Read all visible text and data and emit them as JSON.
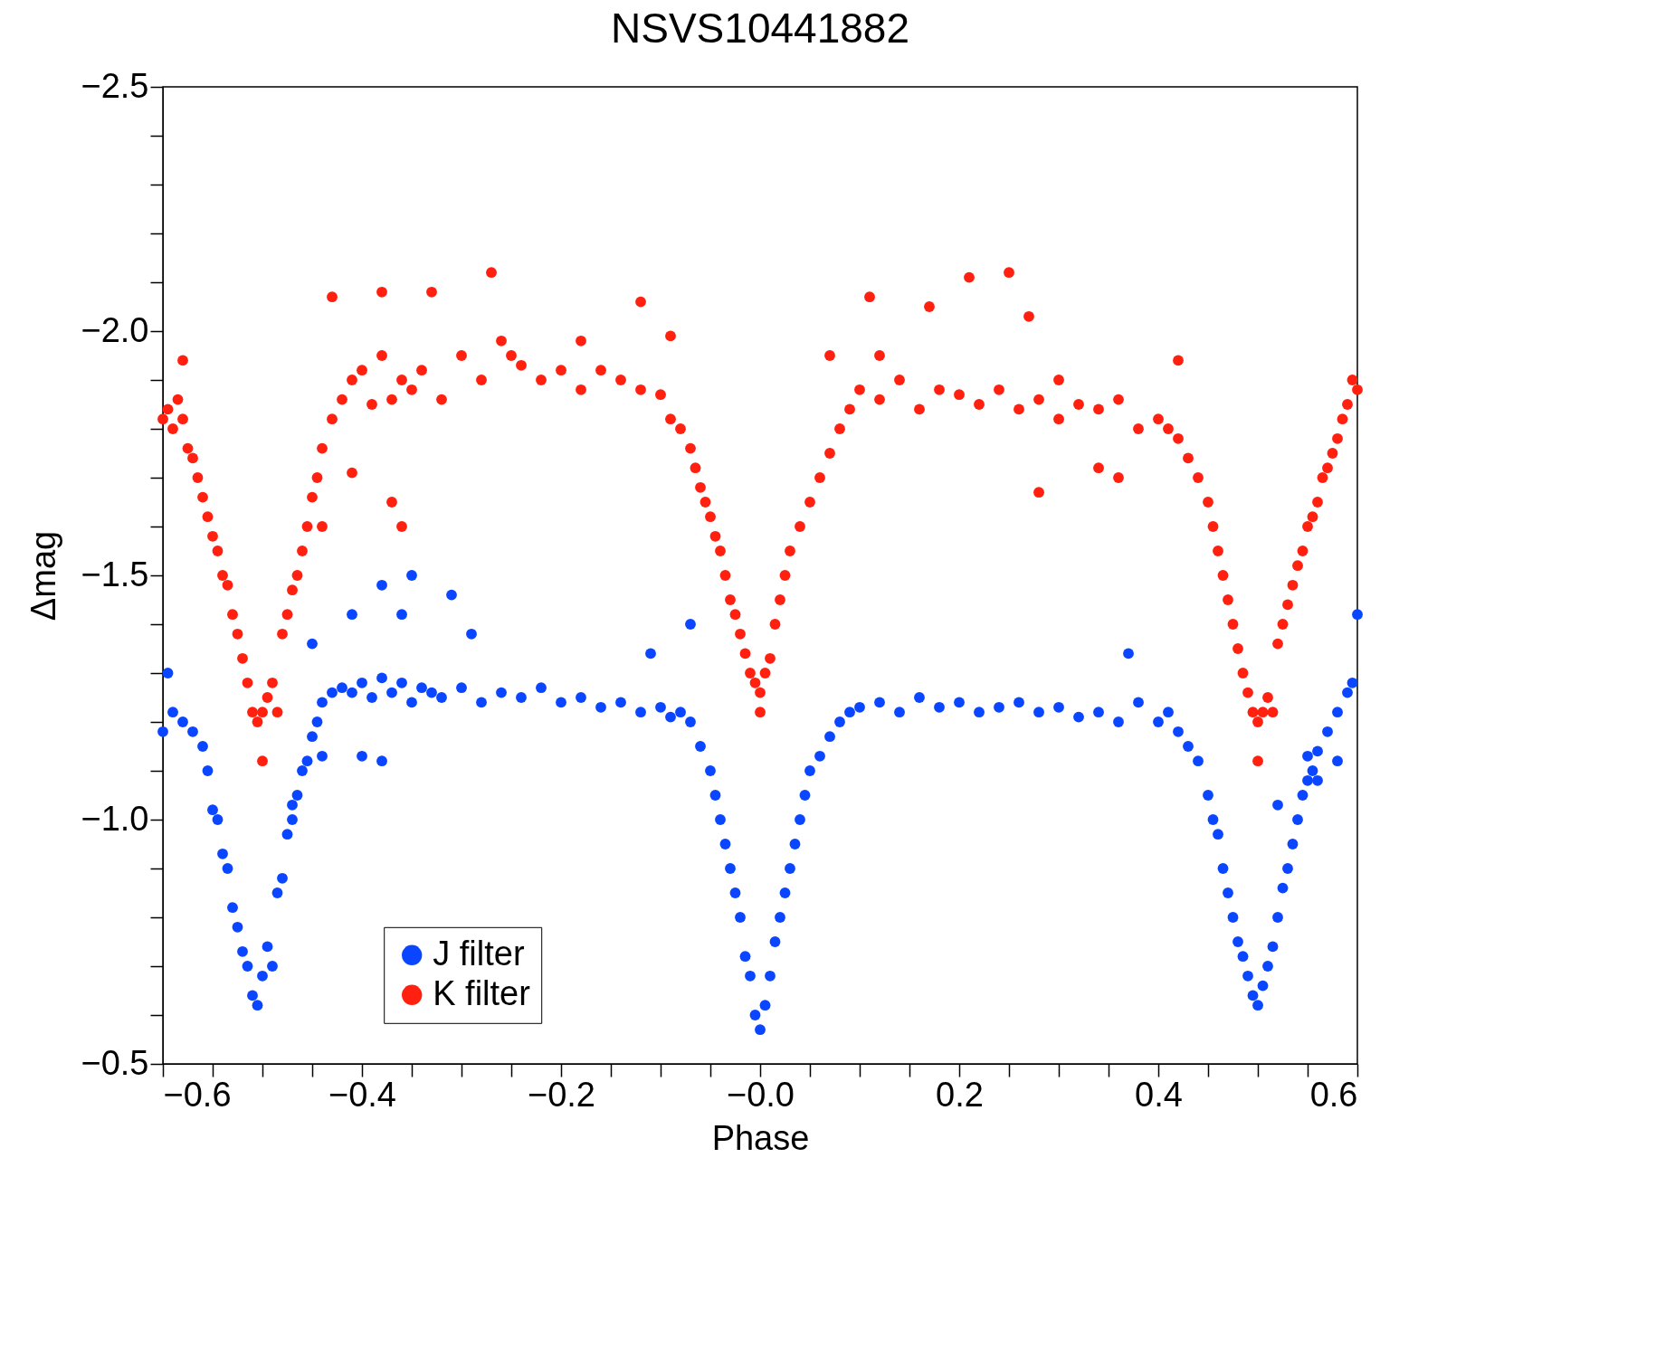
{
  "chart_data": {
    "type": "scatter",
    "title": "NSVS10441882",
    "xlabel": "Phase",
    "ylabel": "Δmag",
    "xlim": [
      -0.6,
      0.6
    ],
    "ylim": [
      -0.5,
      -2.5
    ],
    "xticks": [
      {
        "value": -0.6,
        "label": "−0.6"
      },
      {
        "value": -0.55,
        "label": null
      },
      {
        "value": -0.5,
        "label": null
      },
      {
        "value": -0.45,
        "label": null
      },
      {
        "value": -0.4,
        "label": "−0.4"
      },
      {
        "value": -0.35,
        "label": null
      },
      {
        "value": -0.3,
        "label": null
      },
      {
        "value": -0.25,
        "label": null
      },
      {
        "value": -0.2,
        "label": "−0.2"
      },
      {
        "value": -0.15,
        "label": null
      },
      {
        "value": -0.1,
        "label": null
      },
      {
        "value": -0.05,
        "label": null
      },
      {
        "value": 0,
        "label": "−0.0"
      },
      {
        "value": 0.05,
        "label": null
      },
      {
        "value": 0.1,
        "label": null
      },
      {
        "value": 0.15,
        "label": null
      },
      {
        "value": 0.2,
        "label": "0.2"
      },
      {
        "value": 0.25,
        "label": null
      },
      {
        "value": 0.3,
        "label": null
      },
      {
        "value": 0.35,
        "label": null
      },
      {
        "value": 0.4,
        "label": "0.4"
      },
      {
        "value": 0.45,
        "label": null
      },
      {
        "value": 0.5,
        "label": null
      },
      {
        "value": 0.55,
        "label": null
      },
      {
        "value": 0.6,
        "label": "0.6"
      }
    ],
    "yticks": [
      {
        "value": -2.5,
        "label": "−2.5"
      },
      {
        "value": -2.4,
        "label": null
      },
      {
        "value": -2.3,
        "label": null
      },
      {
        "value": -2.2,
        "label": null
      },
      {
        "value": -2.1,
        "label": null
      },
      {
        "value": -2.0,
        "label": "−2.0"
      },
      {
        "value": -1.9,
        "label": null
      },
      {
        "value": -1.8,
        "label": null
      },
      {
        "value": -1.7,
        "label": null
      },
      {
        "value": -1.6,
        "label": null
      },
      {
        "value": -1.5,
        "label": "−1.5"
      },
      {
        "value": -1.4,
        "label": null
      },
      {
        "value": -1.3,
        "label": null
      },
      {
        "value": -1.2,
        "label": null
      },
      {
        "value": -1.1,
        "label": null
      },
      {
        "value": -1.0,
        "label": "−1.0"
      },
      {
        "value": -0.9,
        "label": null
      },
      {
        "value": -0.8,
        "label": null
      },
      {
        "value": -0.7,
        "label": null
      },
      {
        "value": -0.6,
        "label": null
      },
      {
        "value": -0.5,
        "label": "−0.5"
      }
    ],
    "grid": false,
    "legend": "bottom left",
    "marker": "circle",
    "series": [
      {
        "name": "J filter",
        "color": "#0a46ff",
        "x": [
          -0.6,
          -0.595,
          -0.59,
          -0.58,
          -0.57,
          -0.56,
          -0.555,
          -0.55,
          -0.545,
          -0.54,
          -0.535,
          -0.53,
          -0.525,
          -0.52,
          -0.515,
          -0.51,
          -0.505,
          -0.5,
          -0.495,
          -0.49,
          -0.485,
          -0.48,
          -0.475,
          -0.47,
          -0.465,
          -0.46,
          -0.455,
          -0.45,
          -0.445,
          -0.44,
          -0.43,
          -0.42,
          -0.41,
          -0.4,
          -0.39,
          -0.38,
          -0.37,
          -0.36,
          -0.35,
          -0.34,
          -0.33,
          -0.32,
          -0.3,
          -0.28,
          -0.26,
          -0.24,
          -0.22,
          -0.2,
          -0.18,
          -0.16,
          -0.14,
          -0.12,
          -0.1,
          -0.09,
          -0.08,
          -0.07,
          -0.06,
          -0.05,
          -0.045,
          -0.04,
          -0.035,
          -0.03,
          -0.025,
          -0.02,
          -0.015,
          -0.01,
          -0.005,
          0,
          0.005,
          0.01,
          0.015,
          0.02,
          0.025,
          0.03,
          0.035,
          0.04,
          0.045,
          0.05,
          0.06,
          0.07,
          0.08,
          0.09,
          0.1,
          0.12,
          0.14,
          0.16,
          0.18,
          0.2,
          0.22,
          0.24,
          0.26,
          0.28,
          0.3,
          0.32,
          0.34,
          0.36,
          0.38,
          0.4,
          0.41,
          0.42,
          0.43,
          0.44,
          0.45,
          0.455,
          0.46,
          0.465,
          0.47,
          0.475,
          0.48,
          0.485,
          0.49,
          0.495,
          0.5,
          0.505,
          0.51,
          0.515,
          0.52,
          0.525,
          0.53,
          0.535,
          0.54,
          0.545,
          0.55,
          0.555,
          0.56,
          0.57,
          0.58,
          0.59,
          0.595,
          0.6,
          -0.38,
          -0.35,
          -0.31,
          -0.41,
          -0.36,
          -0.29,
          -0.45,
          -0.07,
          -0.11,
          0.37,
          -0.38,
          -0.44,
          -0.4,
          0.55,
          -0.47,
          0.52,
          0.56,
          0.58
        ],
        "values": [
          -1.18,
          -1.3,
          -1.22,
          -1.2,
          -1.18,
          -1.15,
          -1.1,
          -1.02,
          -1.0,
          -0.93,
          -0.9,
          -0.82,
          -0.78,
          -0.73,
          -0.7,
          -0.64,
          -0.62,
          -0.68,
          -0.74,
          -0.7,
          -0.85,
          -0.88,
          -0.97,
          -1.0,
          -1.05,
          -1.1,
          -1.12,
          -1.17,
          -1.2,
          -1.24,
          -1.26,
          -1.27,
          -1.26,
          -1.28,
          -1.25,
          -1.29,
          -1.26,
          -1.28,
          -1.24,
          -1.27,
          -1.26,
          -1.25,
          -1.27,
          -1.24,
          -1.26,
          -1.25,
          -1.27,
          -1.24,
          -1.25,
          -1.23,
          -1.24,
          -1.22,
          -1.23,
          -1.21,
          -1.22,
          -1.2,
          -1.15,
          -1.1,
          -1.05,
          -1.0,
          -0.95,
          -0.9,
          -0.85,
          -0.8,
          -0.72,
          -0.68,
          -0.6,
          -0.57,
          -0.62,
          -0.68,
          -0.75,
          -0.8,
          -0.85,
          -0.9,
          -0.95,
          -1.0,
          -1.05,
          -1.1,
          -1.13,
          -1.17,
          -1.2,
          -1.22,
          -1.23,
          -1.24,
          -1.22,
          -1.25,
          -1.23,
          -1.24,
          -1.22,
          -1.23,
          -1.24,
          -1.22,
          -1.23,
          -1.21,
          -1.22,
          -1.2,
          -1.24,
          -1.2,
          -1.22,
          -1.18,
          -1.15,
          -1.12,
          -1.05,
          -1.0,
          -0.97,
          -0.9,
          -0.85,
          -0.8,
          -0.75,
          -0.72,
          -0.68,
          -0.64,
          -0.62,
          -0.66,
          -0.7,
          -0.74,
          -0.8,
          -0.86,
          -0.9,
          -0.95,
          -1.0,
          -1.05,
          -1.08,
          -1.1,
          -1.14,
          -1.18,
          -1.22,
          -1.26,
          -1.28,
          -1.42,
          -1.48,
          -1.5,
          -1.46,
          -1.42,
          -1.42,
          -1.38,
          -1.36,
          -1.4,
          -1.34,
          -1.34,
          -1.12,
          -1.13,
          -1.13,
          -1.13,
          -1.03,
          -1.03,
          -1.08,
          -1.12
        ]
      },
      {
        "name": "K filter",
        "color": "#ff2010",
        "x": [
          -0.6,
          -0.595,
          -0.59,
          -0.585,
          -0.58,
          -0.575,
          -0.57,
          -0.565,
          -0.56,
          -0.555,
          -0.55,
          -0.545,
          -0.54,
          -0.535,
          -0.53,
          -0.525,
          -0.52,
          -0.515,
          -0.51,
          -0.505,
          -0.5,
          -0.495,
          -0.49,
          -0.485,
          -0.48,
          -0.475,
          -0.47,
          -0.465,
          -0.46,
          -0.455,
          -0.45,
          -0.445,
          -0.44,
          -0.43,
          -0.42,
          -0.41,
          -0.4,
          -0.39,
          -0.38,
          -0.37,
          -0.36,
          -0.35,
          -0.34,
          -0.32,
          -0.3,
          -0.28,
          -0.26,
          -0.24,
          -0.22,
          -0.2,
          -0.18,
          -0.16,
          -0.14,
          -0.12,
          -0.1,
          -0.09,
          -0.08,
          -0.07,
          -0.065,
          -0.06,
          -0.055,
          -0.05,
          -0.045,
          -0.04,
          -0.035,
          -0.03,
          -0.025,
          -0.02,
          -0.015,
          -0.01,
          -0.005,
          0,
          0.005,
          0.01,
          0.015,
          0.02,
          0.025,
          0.03,
          0.04,
          0.05,
          0.06,
          0.07,
          0.08,
          0.09,
          0.1,
          0.12,
          0.14,
          0.16,
          0.18,
          0.2,
          0.22,
          0.24,
          0.26,
          0.28,
          0.3,
          0.32,
          0.34,
          0.36,
          0.38,
          0.4,
          0.41,
          0.42,
          0.43,
          0.44,
          0.45,
          0.455,
          0.46,
          0.465,
          0.47,
          0.475,
          0.48,
          0.485,
          0.49,
          0.495,
          0.5,
          0.505,
          0.51,
          0.515,
          0.52,
          0.525,
          0.53,
          0.535,
          0.54,
          0.545,
          0.55,
          0.555,
          0.56,
          0.565,
          0.57,
          0.575,
          0.58,
          0.585,
          0.59,
          0.595,
          0.6,
          -0.43,
          -0.38,
          -0.33,
          -0.27,
          -0.12,
          -0.09,
          0.11,
          0.17,
          0.21,
          0.25,
          0.27,
          0.42,
          0.28,
          -0.5,
          0.5,
          0,
          -0.37,
          -0.41,
          -0.44,
          0.36,
          -0.58,
          0.34,
          -0.36,
          -0.25,
          -0.18,
          0.07,
          0.12,
          0.3
        ],
        "values": [
          -1.82,
          -1.84,
          -1.8,
          -1.86,
          -1.82,
          -1.76,
          -1.74,
          -1.7,
          -1.66,
          -1.62,
          -1.58,
          -1.55,
          -1.5,
          -1.48,
          -1.42,
          -1.38,
          -1.33,
          -1.28,
          -1.22,
          -1.2,
          -1.22,
          -1.25,
          -1.28,
          -1.22,
          -1.38,
          -1.42,
          -1.47,
          -1.5,
          -1.55,
          -1.6,
          -1.66,
          -1.7,
          -1.76,
          -1.82,
          -1.86,
          -1.9,
          -1.92,
          -1.85,
          -1.95,
          -1.86,
          -1.9,
          -1.88,
          -1.92,
          -1.86,
          -1.95,
          -1.9,
          -1.98,
          -1.93,
          -1.9,
          -1.92,
          -1.88,
          -1.92,
          -1.9,
          -1.88,
          -1.87,
          -1.82,
          -1.8,
          -1.76,
          -1.72,
          -1.68,
          -1.65,
          -1.62,
          -1.58,
          -1.55,
          -1.5,
          -1.45,
          -1.42,
          -1.38,
          -1.34,
          -1.3,
          -1.28,
          -1.26,
          -1.3,
          -1.33,
          -1.4,
          -1.45,
          -1.5,
          -1.55,
          -1.6,
          -1.65,
          -1.7,
          -1.75,
          -1.8,
          -1.84,
          -1.88,
          -1.86,
          -1.9,
          -1.84,
          -1.88,
          -1.87,
          -1.85,
          -1.88,
          -1.84,
          -1.86,
          -1.82,
          -1.85,
          -1.84,
          -1.86,
          -1.8,
          -1.82,
          -1.8,
          -1.78,
          -1.74,
          -1.7,
          -1.65,
          -1.6,
          -1.55,
          -1.5,
          -1.45,
          -1.4,
          -1.35,
          -1.3,
          -1.26,
          -1.22,
          -1.2,
          -1.22,
          -1.25,
          -1.22,
          -1.36,
          -1.4,
          -1.44,
          -1.48,
          -1.52,
          -1.55,
          -1.6,
          -1.62,
          -1.65,
          -1.7,
          -1.72,
          -1.75,
          -1.78,
          -1.82,
          -1.85,
          -1.9,
          -1.88,
          -2.07,
          -2.08,
          -2.08,
          -2.12,
          -2.06,
          -1.99,
          -2.07,
          -2.05,
          -2.11,
          -2.12,
          -2.03,
          -1.94,
          -1.67,
          -1.12,
          -1.12,
          -1.22,
          -1.65,
          -1.71,
          -1.6,
          -1.7,
          -1.94,
          -1.72,
          -1.6,
          -1.95,
          -1.98,
          -1.95,
          -1.95,
          -1.9
        ]
      }
    ]
  }
}
